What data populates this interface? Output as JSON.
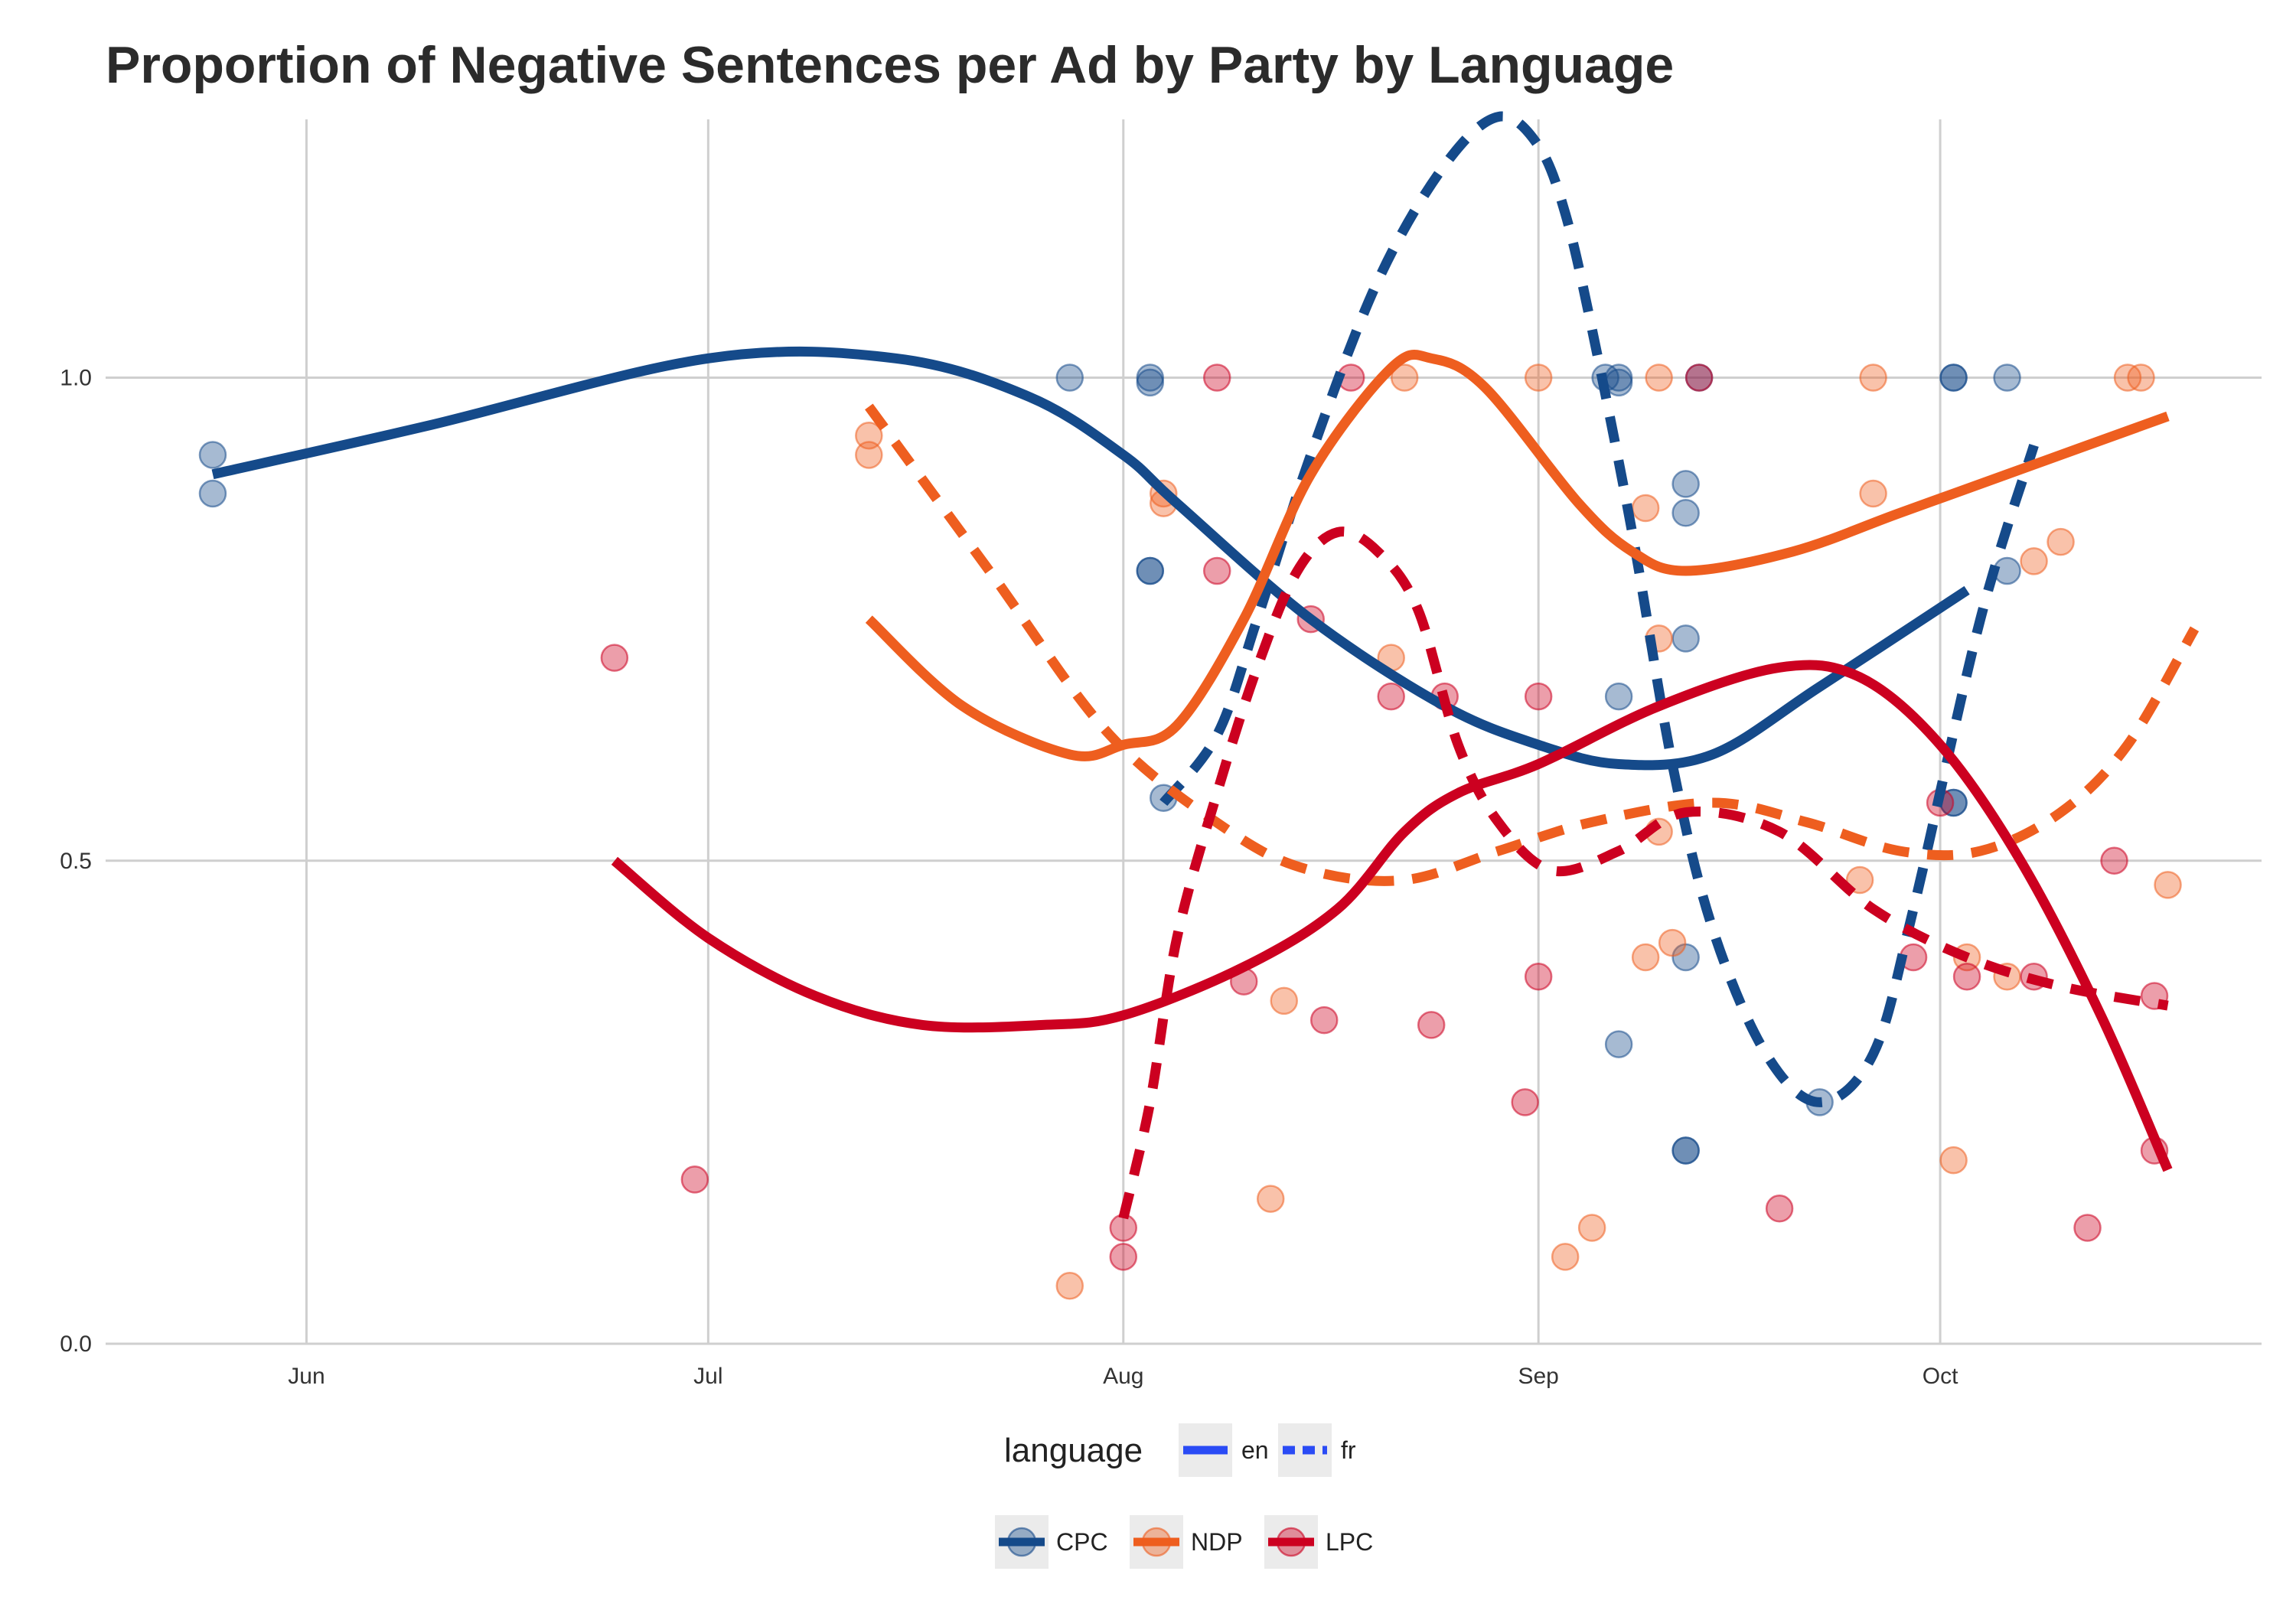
{
  "chart_data": {
    "type": "line",
    "title": "Proportion of Negative Sentences per Ad by Party by Language",
    "xlabel": "",
    "ylabel": "",
    "x_ticks": [
      {
        "label": "Jun",
        "date": "2015-06-01"
      },
      {
        "label": "Jul",
        "date": "2015-07-01"
      },
      {
        "label": "Aug",
        "date": "2015-08-01"
      },
      {
        "label": "Sep",
        "date": "2015-09-01"
      },
      {
        "label": "Oct",
        "date": "2015-10-01"
      }
    ],
    "y_ticks": [
      {
        "label": "0.0",
        "value": 0.0
      },
      {
        "label": "0.5",
        "value": 0.5
      },
      {
        "label": "1.0",
        "value": 1.0
      }
    ],
    "xlim": [
      "2015-05-17",
      "2015-10-25"
    ],
    "ylim": [
      0.0,
      1.28
    ],
    "grid": true,
    "colors": {
      "CPC": "#154a8a",
      "NDP": "#ee5e1f",
      "LPC": "#cc0020"
    },
    "legend": {
      "position": "bottom",
      "language_title": "language",
      "language": [
        {
          "label": "en",
          "dash": "solid"
        },
        {
          "label": "fr",
          "dash": "dashed"
        }
      ],
      "party": [
        {
          "label": "CPC",
          "key": "CPC"
        },
        {
          "label": "NDP",
          "key": "NDP"
        },
        {
          "label": "LPC",
          "key": "LPC"
        }
      ]
    },
    "series": [
      {
        "party": "CPC",
        "language": "en",
        "points": [
          [
            "2015-05-25",
            0.9
          ],
          [
            "2015-06-10",
            0.95
          ],
          [
            "2015-07-01",
            1.02
          ],
          [
            "2015-07-15",
            1.02
          ],
          [
            "2015-07-25",
            0.98
          ],
          [
            "2015-08-01",
            0.92
          ],
          [
            "2015-08-05",
            0.87
          ],
          [
            "2015-08-15",
            0.75
          ],
          [
            "2015-08-25",
            0.66
          ],
          [
            "2015-09-01",
            0.62
          ],
          [
            "2015-09-07",
            0.6
          ],
          [
            "2015-09-14",
            0.61
          ],
          [
            "2015-09-22",
            0.68
          ],
          [
            "2015-10-03",
            0.78
          ]
        ]
      },
      {
        "party": "CPC",
        "language": "fr",
        "points": [
          [
            "2015-08-04",
            0.56
          ],
          [
            "2015-08-08",
            0.63
          ],
          [
            "2015-08-11",
            0.75
          ],
          [
            "2015-08-15",
            0.92
          ],
          [
            "2015-08-20",
            1.1
          ],
          [
            "2015-08-25",
            1.22
          ],
          [
            "2015-08-29",
            1.27
          ],
          [
            "2015-09-01",
            1.24
          ],
          [
            "2015-09-03",
            1.17
          ],
          [
            "2015-09-05",
            1.05
          ],
          [
            "2015-09-08",
            0.84
          ],
          [
            "2015-09-11",
            0.6
          ],
          [
            "2015-09-14",
            0.43
          ],
          [
            "2015-09-18",
            0.3
          ],
          [
            "2015-09-22",
            0.25
          ],
          [
            "2015-09-26",
            0.3
          ],
          [
            "2015-09-29",
            0.45
          ],
          [
            "2015-10-04",
            0.75
          ],
          [
            "2015-10-08",
            0.93
          ]
        ]
      },
      {
        "party": "NDP",
        "language": "en",
        "points": [
          [
            "2015-07-13",
            0.75
          ],
          [
            "2015-07-20",
            0.66
          ],
          [
            "2015-07-28",
            0.61
          ],
          [
            "2015-08-01",
            0.62
          ],
          [
            "2015-08-05",
            0.64
          ],
          [
            "2015-08-10",
            0.75
          ],
          [
            "2015-08-15",
            0.9
          ],
          [
            "2015-08-21",
            1.01
          ],
          [
            "2015-08-24",
            1.02
          ],
          [
            "2015-08-28",
            0.99
          ],
          [
            "2015-09-04",
            0.87
          ],
          [
            "2015-09-08",
            0.82
          ],
          [
            "2015-09-12",
            0.8
          ],
          [
            "2015-09-20",
            0.82
          ],
          [
            "2015-09-28",
            0.86
          ],
          [
            "2015-10-06",
            0.9
          ],
          [
            "2015-10-18",
            0.96
          ]
        ]
      },
      {
        "party": "NDP",
        "language": "fr",
        "points": [
          [
            "2015-07-13",
            0.97
          ],
          [
            "2015-07-22",
            0.8
          ],
          [
            "2015-07-31",
            0.63
          ],
          [
            "2015-08-09",
            0.53
          ],
          [
            "2015-08-15",
            0.49
          ],
          [
            "2015-08-22",
            0.48
          ],
          [
            "2015-08-29",
            0.51
          ],
          [
            "2015-09-05",
            0.54
          ],
          [
            "2015-09-14",
            0.56
          ],
          [
            "2015-09-21",
            0.54
          ],
          [
            "2015-09-28",
            0.51
          ],
          [
            "2015-10-04",
            0.51
          ],
          [
            "2015-10-10",
            0.55
          ],
          [
            "2015-10-15",
            0.62
          ],
          [
            "2015-10-20",
            0.74
          ]
        ]
      },
      {
        "party": "LPC",
        "language": "en",
        "points": [
          [
            "2015-06-24",
            0.5
          ],
          [
            "2015-07-01",
            0.42
          ],
          [
            "2015-07-09",
            0.36
          ],
          [
            "2015-07-17",
            0.33
          ],
          [
            "2015-07-26",
            0.33
          ],
          [
            "2015-08-01",
            0.34
          ],
          [
            "2015-08-10",
            0.39
          ],
          [
            "2015-08-17",
            0.45
          ],
          [
            "2015-08-22",
            0.53
          ],
          [
            "2015-08-26",
            0.57
          ],
          [
            "2015-09-01",
            0.6
          ],
          [
            "2015-09-10",
            0.66
          ],
          [
            "2015-09-19",
            0.7
          ],
          [
            "2015-09-25",
            0.69
          ],
          [
            "2015-10-01",
            0.62
          ],
          [
            "2015-10-07",
            0.5
          ],
          [
            "2015-10-13",
            0.34
          ],
          [
            "2015-10-18",
            0.18
          ]
        ]
      },
      {
        "party": "LPC",
        "language": "fr",
        "points": [
          [
            "2015-08-01",
            0.13
          ],
          [
            "2015-08-03",
            0.25
          ],
          [
            "2015-08-05",
            0.42
          ],
          [
            "2015-08-08",
            0.57
          ],
          [
            "2015-08-11",
            0.7
          ],
          [
            "2015-08-14",
            0.8
          ],
          [
            "2015-08-17",
            0.84
          ],
          [
            "2015-08-20",
            0.82
          ],
          [
            "2015-08-23",
            0.76
          ],
          [
            "2015-08-26",
            0.62
          ],
          [
            "2015-08-29",
            0.54
          ],
          [
            "2015-09-02",
            0.49
          ],
          [
            "2015-09-07",
            0.51
          ],
          [
            "2015-09-12",
            0.55
          ],
          [
            "2015-09-19",
            0.53
          ],
          [
            "2015-09-26",
            0.45
          ],
          [
            "2015-10-03",
            0.4
          ],
          [
            "2015-10-10",
            0.37
          ],
          [
            "2015-10-18",
            0.35
          ]
        ]
      }
    ],
    "points": [
      {
        "party": "CPC",
        "x": "2015-05-25",
        "y": 0.92
      },
      {
        "party": "CPC",
        "x": "2015-05-25",
        "y": 0.88
      },
      {
        "party": "CPC",
        "x": "2015-07-28",
        "y": 1.0
      },
      {
        "party": "CPC",
        "x": "2015-08-03",
        "y": 0.995
      },
      {
        "party": "CPC",
        "x": "2015-08-03",
        "y": 1.0
      },
      {
        "party": "CPC",
        "x": "2015-08-03",
        "y": 0.8
      },
      {
        "party": "CPC",
        "x": "2015-08-03",
        "y": 0.8
      },
      {
        "party": "CPC",
        "x": "2015-08-04",
        "y": 0.565
      },
      {
        "party": "CPC",
        "x": "2015-09-06",
        "y": 1.0
      },
      {
        "party": "CPC",
        "x": "2015-09-07",
        "y": 1.0
      },
      {
        "party": "CPC",
        "x": "2015-09-07",
        "y": 0.995
      },
      {
        "party": "CPC",
        "x": "2015-09-07",
        "y": 0.67
      },
      {
        "party": "CPC",
        "x": "2015-09-07",
        "y": 0.31
      },
      {
        "party": "CPC",
        "x": "2015-09-12",
        "y": 0.89
      },
      {
        "party": "CPC",
        "x": "2015-09-12",
        "y": 0.86
      },
      {
        "party": "CPC",
        "x": "2015-09-12",
        "y": 0.73
      },
      {
        "party": "CPC",
        "x": "2015-09-12",
        "y": 0.4
      },
      {
        "party": "CPC",
        "x": "2015-09-12",
        "y": 0.2
      },
      {
        "party": "CPC",
        "x": "2015-09-12",
        "y": 0.2
      },
      {
        "party": "CPC",
        "x": "2015-09-13",
        "y": 1.0
      },
      {
        "party": "CPC",
        "x": "2015-09-22",
        "y": 0.25
      },
      {
        "party": "CPC",
        "x": "2015-10-02",
        "y": 1.0
      },
      {
        "party": "CPC",
        "x": "2015-10-02",
        "y": 1.0
      },
      {
        "party": "CPC",
        "x": "2015-10-02",
        "y": 0.56
      },
      {
        "party": "CPC",
        "x": "2015-10-02",
        "y": 0.56
      },
      {
        "party": "CPC",
        "x": "2015-10-06",
        "y": 1.0
      },
      {
        "party": "CPC",
        "x": "2015-10-06",
        "y": 0.8
      },
      {
        "party": "NDP",
        "x": "2015-07-13",
        "y": 0.94
      },
      {
        "party": "NDP",
        "x": "2015-07-13",
        "y": 0.92
      },
      {
        "party": "NDP",
        "x": "2015-07-28",
        "y": 0.06
      },
      {
        "party": "NDP",
        "x": "2015-08-04",
        "y": 0.87
      },
      {
        "party": "NDP",
        "x": "2015-08-04",
        "y": 0.88
      },
      {
        "party": "NDP",
        "x": "2015-08-12",
        "y": 0.15
      },
      {
        "party": "NDP",
        "x": "2015-08-13",
        "y": 0.355
      },
      {
        "party": "NDP",
        "x": "2015-08-21",
        "y": 0.71
      },
      {
        "party": "NDP",
        "x": "2015-08-22",
        "y": 1.0
      },
      {
        "party": "NDP",
        "x": "2015-09-01",
        "y": 1.0
      },
      {
        "party": "NDP",
        "x": "2015-09-03",
        "y": 0.09
      },
      {
        "party": "NDP",
        "x": "2015-09-05",
        "y": 0.12
      },
      {
        "party": "NDP",
        "x": "2015-09-09",
        "y": 0.865
      },
      {
        "party": "NDP",
        "x": "2015-09-09",
        "y": 0.4
      },
      {
        "party": "NDP",
        "x": "2015-09-10",
        "y": 1.0
      },
      {
        "party": "NDP",
        "x": "2015-09-10",
        "y": 0.73
      },
      {
        "party": "NDP",
        "x": "2015-09-10",
        "y": 0.53
      },
      {
        "party": "NDP",
        "x": "2015-09-11",
        "y": 0.415
      },
      {
        "party": "NDP",
        "x": "2015-09-25",
        "y": 0.48
      },
      {
        "party": "NDP",
        "x": "2015-09-26",
        "y": 1.0
      },
      {
        "party": "NDP",
        "x": "2015-09-26",
        "y": 0.88
      },
      {
        "party": "NDP",
        "x": "2015-10-02",
        "y": 0.19
      },
      {
        "party": "NDP",
        "x": "2015-10-03",
        "y": 0.4
      },
      {
        "party": "NDP",
        "x": "2015-10-06",
        "y": 0.38
      },
      {
        "party": "NDP",
        "x": "2015-10-08",
        "y": 0.81
      },
      {
        "party": "NDP",
        "x": "2015-10-10",
        "y": 0.83
      },
      {
        "party": "NDP",
        "x": "2015-10-15",
        "y": 1.0
      },
      {
        "party": "NDP",
        "x": "2015-10-16",
        "y": 1.0
      },
      {
        "party": "NDP",
        "x": "2015-10-18",
        "y": 0.475
      },
      {
        "party": "LPC",
        "x": "2015-06-24",
        "y": 0.71
      },
      {
        "party": "LPC",
        "x": "2015-06-30",
        "y": 0.17
      },
      {
        "party": "LPC",
        "x": "2015-08-01",
        "y": 0.12
      },
      {
        "party": "LPC",
        "x": "2015-08-01",
        "y": 0.09
      },
      {
        "party": "LPC",
        "x": "2015-08-08",
        "y": 1.0
      },
      {
        "party": "LPC",
        "x": "2015-08-08",
        "y": 0.8
      },
      {
        "party": "LPC",
        "x": "2015-08-10",
        "y": 0.375
      },
      {
        "party": "LPC",
        "x": "2015-08-15",
        "y": 0.75
      },
      {
        "party": "LPC",
        "x": "2015-08-16",
        "y": 0.335
      },
      {
        "party": "LPC",
        "x": "2015-08-18",
        "y": 1.0
      },
      {
        "party": "LPC",
        "x": "2015-08-21",
        "y": 0.67
      },
      {
        "party": "LPC",
        "x": "2015-08-24",
        "y": 0.33
      },
      {
        "party": "LPC",
        "x": "2015-08-25",
        "y": 0.67
      },
      {
        "party": "LPC",
        "x": "2015-08-31",
        "y": 0.25
      },
      {
        "party": "LPC",
        "x": "2015-09-01",
        "y": 0.67
      },
      {
        "party": "LPC",
        "x": "2015-09-01",
        "y": 0.38
      },
      {
        "party": "LPC",
        "x": "2015-09-13",
        "y": 1.0
      },
      {
        "party": "LPC",
        "x": "2015-09-19",
        "y": 0.14
      },
      {
        "party": "LPC",
        "x": "2015-09-29",
        "y": 0.4
      },
      {
        "party": "LPC",
        "x": "2015-10-01",
        "y": 0.56
      },
      {
        "party": "LPC",
        "x": "2015-10-03",
        "y": 0.38
      },
      {
        "party": "LPC",
        "x": "2015-10-08",
        "y": 0.38
      },
      {
        "party": "LPC",
        "x": "2015-10-12",
        "y": 0.12
      },
      {
        "party": "LPC",
        "x": "2015-10-14",
        "y": 0.5
      },
      {
        "party": "LPC",
        "x": "2015-10-17",
        "y": 0.36
      },
      {
        "party": "LPC",
        "x": "2015-10-17",
        "y": 0.2
      }
    ]
  }
}
